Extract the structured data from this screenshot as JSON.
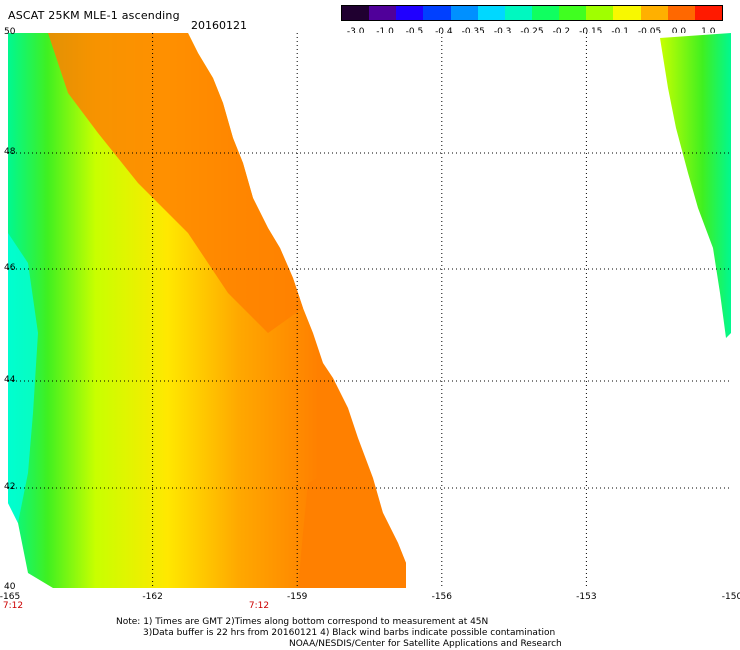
{
  "header": {
    "title": "ASCAT 25KM MLE-1 ascending",
    "date": "20160121"
  },
  "colorbar": {
    "ticks": [
      "-3.0",
      "-1.0",
      "-0.5",
      "-0.4",
      "-0.35",
      "-0.3",
      "-0.25",
      "-0.2",
      "-0.15",
      "-0.1",
      "-0.05",
      "0.0",
      "1.0"
    ],
    "colors": [
      "#200030",
      "#50009a",
      "#2000ff",
      "#0040ff",
      "#0090ff",
      "#00d8ff",
      "#00f8c0",
      "#10ff60",
      "#40ff20",
      "#a0ff00",
      "#f8f800",
      "#ffb000",
      "#ff6800",
      "#ff1a00"
    ]
  },
  "map": {
    "lat_labels": [
      "50",
      "48",
      "46",
      "44",
      "42",
      "40"
    ],
    "lon_labels": [
      "-165",
      "-162",
      "-159",
      "-156",
      "-153",
      "-150"
    ],
    "time_labels": [
      "7:12",
      "7:12"
    ],
    "colors": {
      "orange": "#ff8000",
      "orange_yellow": "#ffa800",
      "yellow": "#ffe800",
      "yellow_green": "#c8ff00",
      "green": "#40f020",
      "cyan_green": "#00f890",
      "cyan": "#00ffe0"
    }
  },
  "notes": [
    "Note: 1) Times are GMT 2)Times along bottom correspond to measurement at 45N",
    "3)Data buffer is 22 hrs from 20160121 4) Black wind barbs indicate possible contamination",
    "NOAA/NESDIS/Center for Satellite Applications and Research"
  ]
}
